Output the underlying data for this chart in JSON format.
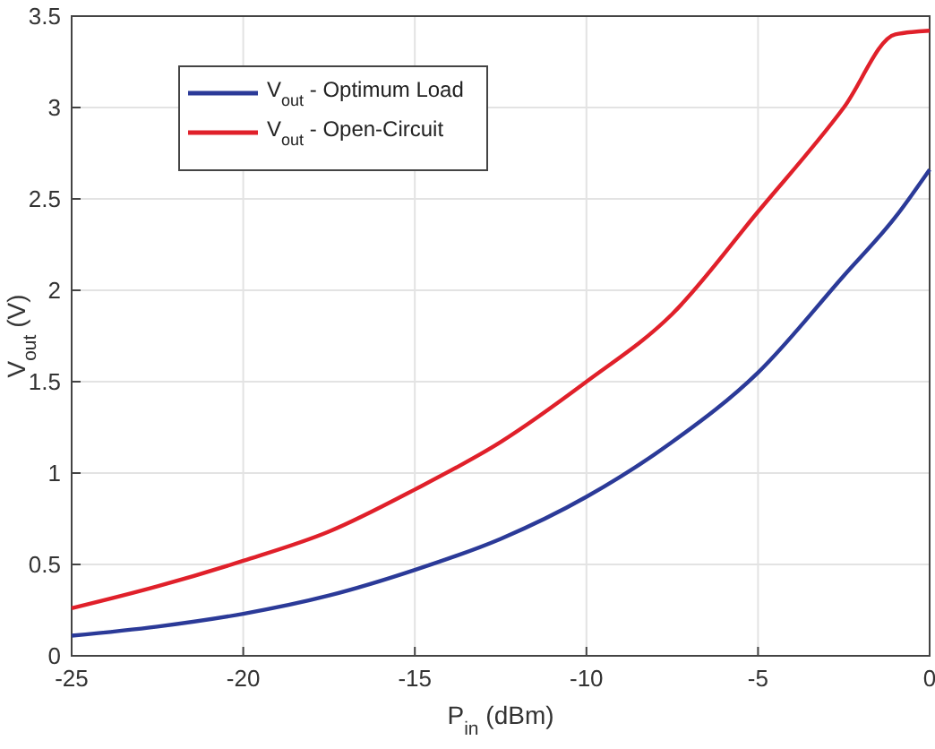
{
  "chart_data": {
    "type": "line",
    "xlabel": "P$_{in}$ (dBm)",
    "ylabel": "V$_{out}$ (V)",
    "xlim": [
      -25,
      0
    ],
    "ylim": [
      0,
      3.5
    ],
    "xticks": [
      -25,
      -20,
      -15,
      -10,
      -5,
      0
    ],
    "yticks": [
      0,
      0.5,
      1,
      1.5,
      2,
      2.5,
      3,
      3.5
    ],
    "grid": true,
    "legend": "top left",
    "line_style": "solid",
    "marker": "none",
    "x": [
      -25,
      -22.5,
      -20,
      -17.5,
      -15,
      -12.5,
      -10,
      -7.5,
      -5,
      -2.5,
      -1,
      0
    ],
    "series": [
      {
        "name": "V$_{out}$ - Optimum Load",
        "color": "#2b3a98",
        "values": [
          0.11,
          0.16,
          0.23,
          0.33,
          0.47,
          0.64,
          0.87,
          1.17,
          1.55,
          2.08,
          2.4,
          2.66
        ]
      },
      {
        "name": "V$_{out}$ - Open-Circuit",
        "color": "#e0202a",
        "values": [
          0.26,
          0.38,
          0.52,
          0.68,
          0.91,
          1.17,
          1.5,
          1.87,
          2.43,
          3.0,
          3.4,
          3.42
        ]
      }
    ]
  }
}
